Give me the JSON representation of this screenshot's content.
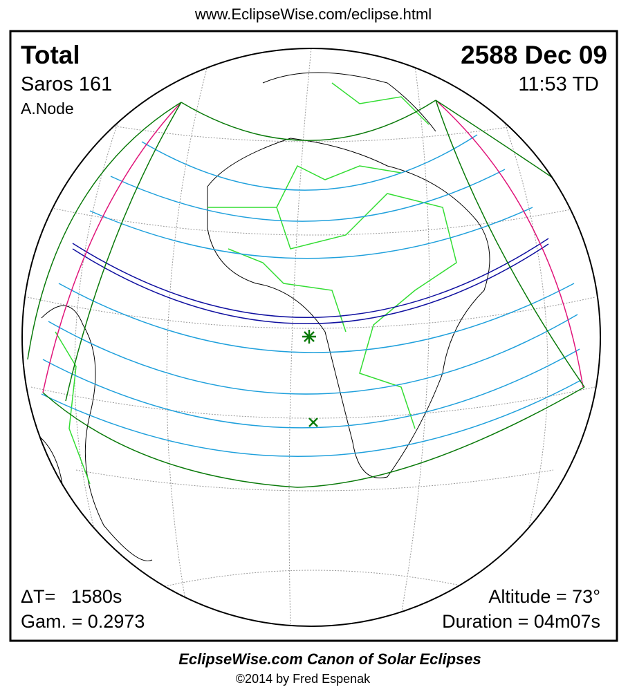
{
  "header": {
    "url": "www.EclipseWise.com/eclipse.html"
  },
  "panel": {
    "type": "Total",
    "saros": "Saros 161",
    "node": "A.Node",
    "date": "2588 Dec 09",
    "time": "11:53 TD",
    "delta_t": "ΔT=   1580s",
    "gamma": "Gam. = 0.2973",
    "altitude": "Altitude = 73°",
    "duration": "Duration = 04m07s"
  },
  "footer": {
    "title": "EclipseWise.com Canon of Solar Eclipses",
    "credit": "©2014 by Fred Espenak"
  }
}
